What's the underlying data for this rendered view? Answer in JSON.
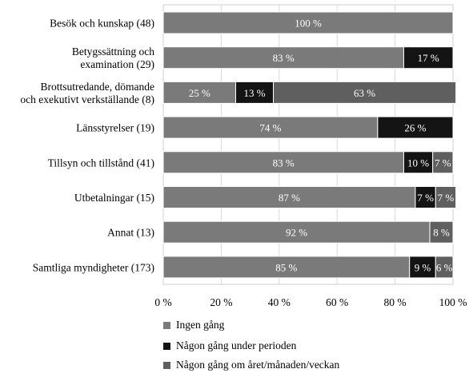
{
  "chart_data": {
    "type": "bar",
    "orientation": "horizontal",
    "stacked": true,
    "categories": [
      "Besök och kunskap (48)",
      [
        "Betygssättning och",
        "examination (29)"
      ],
      [
        "Brottsutredande, dömande",
        "och exekutivt verkställande (8)"
      ],
      "Länsstyrelser (19)",
      "Tillsyn och tillstånd (41)",
      "Utbetalningar (15)",
      "Annat (13)",
      "Samtliga myndigheter (173)"
    ],
    "series": [
      {
        "name": "Ingen gång",
        "color": "#7a7a7a",
        "values": [
          100,
          83,
          25,
          74,
          83,
          87,
          92,
          85
        ],
        "labels": [
          "100 %",
          "83 %",
          "25 %",
          "74 %",
          "83 %",
          "87 %",
          "92 %",
          "85 %"
        ]
      },
      {
        "name": "Någon gång under perioden",
        "color": "#141414",
        "values": [
          0,
          17,
          13,
          26,
          10,
          7,
          0,
          9
        ],
        "labels": [
          "",
          "17 %",
          "13 %",
          "26 %",
          "10 %",
          "7 %",
          "",
          "9 %"
        ]
      },
      {
        "name": "Någon gång om året/månaden/veckan",
        "color": "#5f5f5f",
        "values": [
          0,
          0,
          63,
          0,
          7,
          7,
          8,
          6
        ],
        "labels": [
          "",
          "",
          "63 %",
          "",
          "7 %",
          "7 %",
          "8 %",
          "6 %"
        ]
      }
    ],
    "xlim": [
      0,
      100
    ],
    "xticks": [
      0,
      20,
      40,
      60,
      80,
      100
    ],
    "xtick_labels": [
      "0 %",
      "20 %",
      "40 %",
      "60 %",
      "80 %",
      "100 %"
    ],
    "label_color": "#ffffff",
    "grid": true,
    "legend_position": "bottom"
  }
}
